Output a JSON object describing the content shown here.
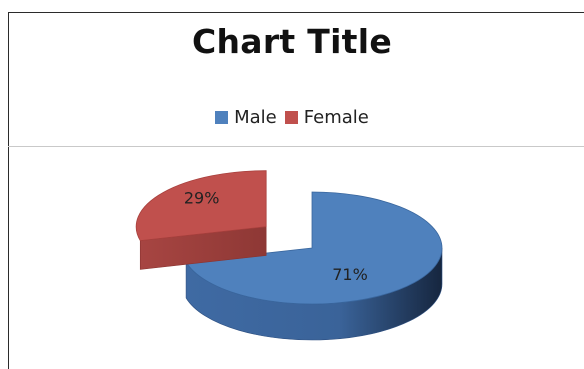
{
  "chart_data": {
    "type": "pie",
    "title": "Chart Title",
    "style": "3d-exploded",
    "legend_position": "top",
    "categories": [
      "Male",
      "Female"
    ],
    "values": [
      71,
      29
    ],
    "labels": [
      "71%",
      "29%"
    ],
    "colors": [
      "#4f81bd",
      "#c0504d"
    ]
  }
}
